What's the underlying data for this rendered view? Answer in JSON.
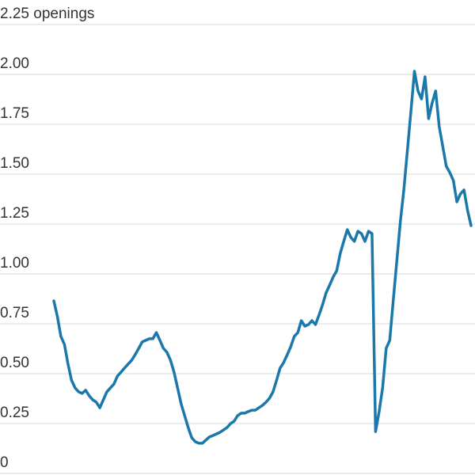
{
  "chart_data": {
    "type": "line",
    "series": [
      {
        "color": "#1b78ab",
        "values": [
          0.865,
          0.786,
          0.687,
          0.647,
          0.548,
          0.468,
          0.429,
          0.409,
          0.401,
          0.417,
          0.389,
          0.369,
          0.357,
          0.329,
          0.369,
          0.409,
          0.429,
          0.448,
          0.488,
          0.508,
          0.528,
          0.548,
          0.567,
          0.595,
          0.627,
          0.659,
          0.667,
          0.675,
          0.675,
          0.706,
          0.667,
          0.627,
          0.607,
          0.567,
          0.508,
          0.429,
          0.349,
          0.29,
          0.23,
          0.179,
          0.159,
          0.151,
          0.151,
          0.167,
          0.183,
          0.19,
          0.198,
          0.206,
          0.218,
          0.23,
          0.25,
          0.262,
          0.29,
          0.302,
          0.302,
          0.31,
          0.317,
          0.317,
          0.329,
          0.341,
          0.357,
          0.377,
          0.409,
          0.468,
          0.528,
          0.556,
          0.595,
          0.635,
          0.687,
          0.706,
          0.766,
          0.738,
          0.746,
          0.766,
          0.746,
          0.794,
          0.845,
          0.905,
          0.944,
          0.984,
          1.016,
          1.103,
          1.163,
          1.222,
          1.183,
          1.163,
          1.214,
          1.202,
          1.163,
          1.214,
          1.202,
          0.21,
          0.31,
          0.429,
          0.627,
          0.667,
          0.865,
          1.063,
          1.262,
          1.421,
          1.619,
          1.817,
          2.016,
          1.917,
          1.877,
          1.988,
          1.778,
          1.857,
          1.917,
          1.738,
          1.639,
          1.54,
          1.508,
          1.468,
          1.361,
          1.401,
          1.421,
          1.321,
          1.242
        ]
      }
    ],
    "ylim": [
      0,
      2.25
    ],
    "yticks": [
      0,
      {
        "value": 0.25,
        "label": "0.25"
      },
      {
        "value": 0.5,
        "label": "0.50"
      },
      {
        "value": 0.75,
        "label": "0.75"
      },
      {
        "value": 1,
        "label": "1.00"
      },
      {
        "value": 1.25,
        "label": "1.25"
      },
      {
        "value": 1.5,
        "label": "1.50"
      },
      {
        "value": 1.75,
        "label": "1.75"
      },
      {
        "value": 2,
        "label": "2.00"
      },
      {
        "value": 2.25,
        "label": "2.25 openings"
      }
    ],
    "grid": true
  }
}
